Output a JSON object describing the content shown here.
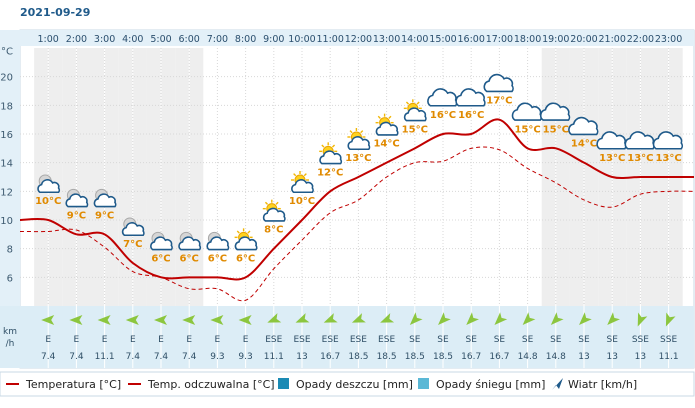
{
  "date": "2021-09-29",
  "y_unit_label": "°C",
  "wind_unit_label": [
    "km",
    "/h"
  ],
  "legend": [
    {
      "label": "Temperatura [°C]",
      "kind": "line-solid",
      "color": "#c00000"
    },
    {
      "label": "Temp. odczuwalna [°C]",
      "kind": "line-dash",
      "color": "#c00000"
    },
    {
      "label": "Opady deszczu [mm]",
      "kind": "box",
      "color": "#1a8ab4"
    },
    {
      "label": "Opady śniegu [mm]",
      "kind": "box",
      "color": "#5ab8d6"
    },
    {
      "label": "Wiatr [km/h]",
      "kind": "arrow",
      "color": "#1f5a8a"
    }
  ],
  "colors": {
    "temperature": "#c00000",
    "feels_like": "#c00000",
    "temp_label": "#e08a00",
    "night_band": "#eeeeee",
    "wind_band": "#dcedf6",
    "wind_arrow": "#8cc63f",
    "hour_header": "#e3f0f8"
  },
  "chart_data": {
    "type": "line",
    "x": [
      "1:00",
      "2:00",
      "3:00",
      "4:00",
      "5:00",
      "6:00",
      "7:00",
      "8:00",
      "9:00",
      "10:00",
      "11:00",
      "12:00",
      "13:00",
      "14:00",
      "15:00",
      "16:00",
      "17:00",
      "18:00",
      "19:00",
      "20:00",
      "21:00",
      "22:00",
      "23:00"
    ],
    "ylim": [
      4,
      22
    ],
    "yticks": [
      6,
      8,
      10,
      12,
      14,
      16,
      18,
      20
    ],
    "night_hours": [
      "1:00",
      "2:00",
      "3:00",
      "4:00",
      "5:00",
      "6:00",
      "19:00",
      "20:00",
      "21:00",
      "22:00",
      "23:00"
    ],
    "series": [
      {
        "name": "Temperatura [°C]",
        "style": "solid",
        "values": [
          10,
          9,
          9,
          7,
          6,
          6,
          6,
          6,
          8,
          10,
          12,
          13,
          14,
          15,
          16,
          16,
          17,
          15,
          15,
          14,
          13,
          13,
          13
        ]
      },
      {
        "name": "Temp. odczuwalna [°C]",
        "style": "dashed",
        "values": [
          9.2,
          9.3,
          8.1,
          6.4,
          6.0,
          5.2,
          5.2,
          4.4,
          6.6,
          8.6,
          10.5,
          11.4,
          13.0,
          14.0,
          14.1,
          15.0,
          14.9,
          13.6,
          12.6,
          11.4,
          10.9,
          11.8,
          12.0
        ]
      }
    ],
    "temp_labels": [
      "10°C",
      "9°C",
      "9°C",
      "7°C",
      "6°C",
      "6°C",
      "6°C",
      "6°C",
      "8°C",
      "10°C",
      "12°C",
      "13°C",
      "14°C",
      "15°C",
      "16°C",
      "16°C",
      "17°C",
      "15°C",
      "15°C",
      "14°C",
      "13°C",
      "13°C",
      "13°C"
    ],
    "weather_icons": [
      "night-partly-cloudy-icon",
      "night-partly-cloudy-icon",
      "night-partly-cloudy-icon",
      "night-partly-cloudy-icon",
      "night-partly-cloudy-icon",
      "night-partly-cloudy-icon",
      "night-partly-cloudy-icon",
      "day-partly-cloudy-icon",
      "day-partly-cloudy-icon",
      "day-partly-cloudy-icon",
      "day-partly-cloudy-icon",
      "day-partly-cloudy-icon",
      "day-partly-cloudy-icon",
      "day-partly-cloudy-icon",
      "cloud-icon",
      "cloud-icon",
      "cloud-icon",
      "cloud-icon",
      "cloud-icon",
      "cloud-icon",
      "cloud-icon",
      "cloud-icon",
      "cloud-icon"
    ],
    "wind": {
      "direction": [
        "E",
        "E",
        "E",
        "E",
        "E",
        "E",
        "E",
        "E",
        "ESE",
        "ESE",
        "ESE",
        "ESE",
        "ESE",
        "SE",
        "SE",
        "SE",
        "SE",
        "SE",
        "SE",
        "SE",
        "SE",
        "SSE",
        "SSE"
      ],
      "speed": [
        "7.4",
        "7.4",
        "11.1",
        "7.4",
        "7.4",
        "7.4",
        "9.3",
        "9.3",
        "11.1",
        "13",
        "16.7",
        "18.5",
        "18.5",
        "18.5",
        "18.5",
        "16.7",
        "16.7",
        "14.8",
        "14.8",
        "13",
        "13",
        "13",
        "11.1"
      ]
    }
  }
}
